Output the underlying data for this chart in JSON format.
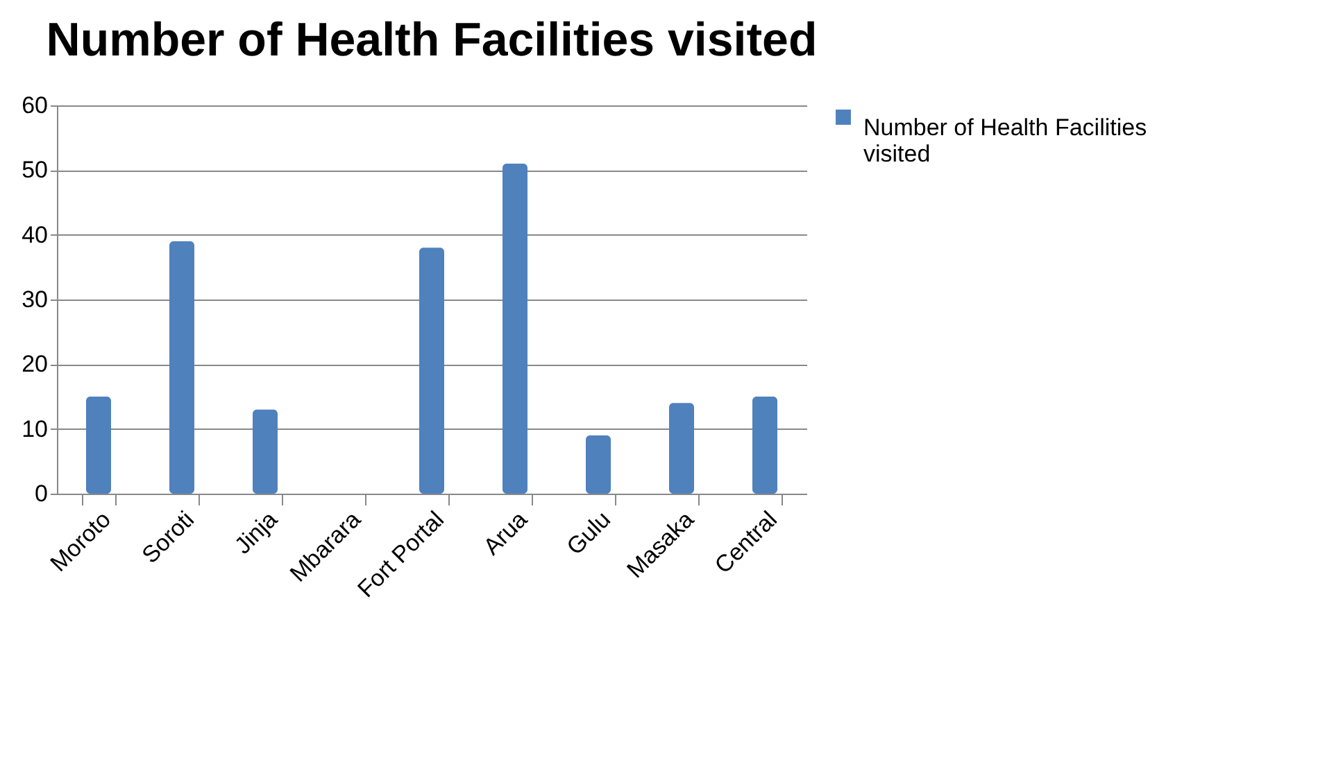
{
  "chart_data": {
    "type": "bar",
    "title": "Number of Health Facilities visited",
    "categories": [
      "Moroto",
      "Soroti",
      "Jinja",
      "Mbarara",
      "Fort Portal",
      "Arua",
      "Gulu",
      "Masaka",
      "Central"
    ],
    "series": [
      {
        "name": "Number of Health Facilities visited",
        "color": "#4f81bd",
        "values": [
          15,
          39,
          13,
          0,
          38,
          51,
          9,
          14,
          15
        ]
      }
    ],
    "ylim": [
      0,
      60
    ],
    "yticks": [
      0,
      10,
      20,
      30,
      40,
      50,
      60
    ],
    "grid": "y",
    "legend": "right"
  }
}
